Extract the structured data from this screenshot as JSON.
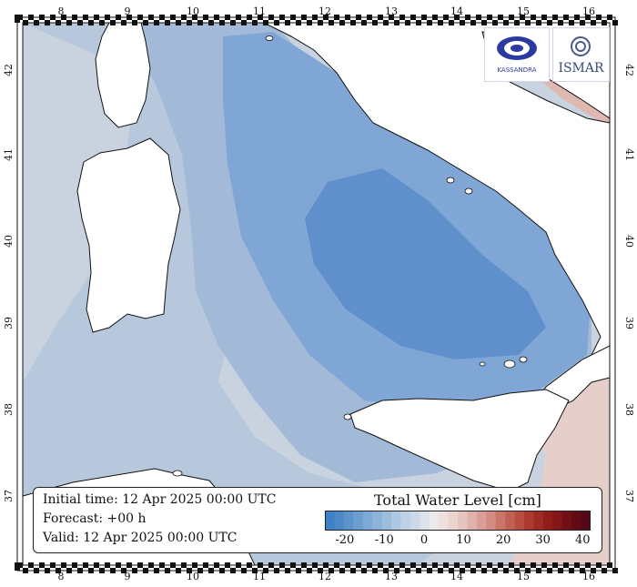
{
  "map": {
    "top_lon_labels": [
      "8",
      "9",
      "10",
      "11",
      "12",
      "13",
      "14",
      "15",
      "16"
    ],
    "bottom_lon_labels": [
      "8",
      "9",
      "10",
      "11",
      "12",
      "13",
      "14",
      "15",
      "16"
    ],
    "left_lat_labels": [
      "42",
      "41",
      "40",
      "39",
      "38",
      "37"
    ],
    "right_lat_labels": [
      "42",
      "41",
      "40",
      "39",
      "38",
      "37"
    ],
    "water_colors": {
      "deep_negative": "#4f86c6",
      "negative": "#6b9bd0",
      "mid": "#8fb0d6",
      "light": "#a9c0dc",
      "neutral": "#c8d2de",
      "positive": "#e6c9c5"
    },
    "land_color": "#ffffff"
  },
  "logos": {
    "left_name": "KASSANDRA",
    "right_name": "ISMAR"
  },
  "info": {
    "initial_time": "Initial time: 12 Apr 2025 00:00 UTC",
    "forecast": "Forecast: +00 h",
    "valid": "Valid: 12 Apr 2025 00:00 UTC"
  },
  "colorbar": {
    "title": "Total Water Level [cm]",
    "ticks": [
      "-20",
      "-10",
      "0",
      "10",
      "20",
      "30",
      "40"
    ],
    "min": -25,
    "max": 42,
    "colors": [
      "#3f7fc4",
      "#4d88c8",
      "#5d93cd",
      "#6d9ed2",
      "#7da9d6",
      "#8db3da",
      "#9dbddf",
      "#adc7e3",
      "#bdd0e6",
      "#cdd9e9",
      "#dde3ec",
      "#ebe9ea",
      "#efe0de",
      "#ebd3cf",
      "#e5c4bf",
      "#dfb2ab",
      "#d99f97",
      "#d28b81",
      "#ca766b",
      "#c16155",
      "#b84d42",
      "#ad3a31",
      "#a02a24",
      "#911d1b",
      "#821516",
      "#710f14",
      "#620b14",
      "#520816"
    ]
  }
}
